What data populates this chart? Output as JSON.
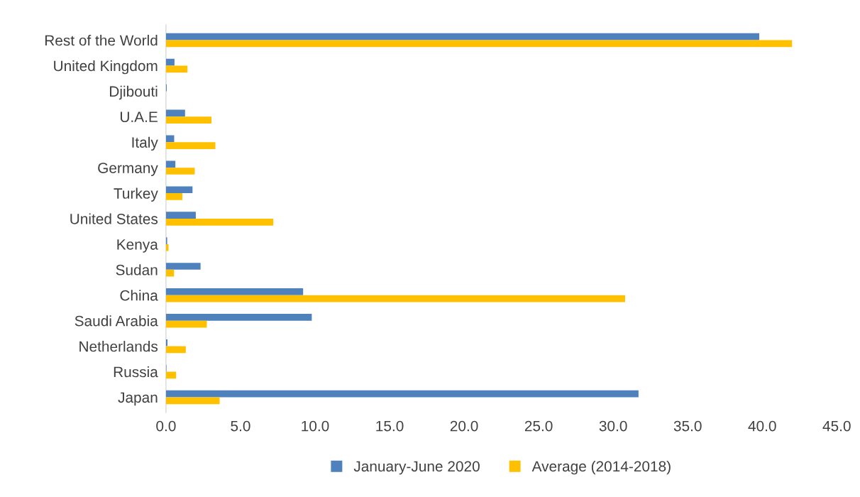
{
  "chart_data": {
    "type": "bar",
    "orientation": "horizontal",
    "categories": [
      "Rest of the World",
      "United Kingdom",
      "Djibouti",
      "U.A.E",
      "Italy",
      "Germany",
      "Turkey",
      "United States",
      "Kenya",
      "Sudan",
      "China",
      "Saudi Arabia",
      "Netherlands",
      "Russia",
      "Japan"
    ],
    "series": [
      {
        "name": "January-June 2020",
        "color": "#4f81bd",
        "values": [
          39.8,
          0.57,
          0.05,
          1.28,
          0.55,
          0.63,
          1.78,
          2.0,
          0.08,
          2.32,
          9.2,
          9.78,
          0.1,
          0.03,
          31.7
        ]
      },
      {
        "name": "Average (2014-2018)",
        "color": "#ffc000",
        "values": [
          42.0,
          1.44,
          0.0,
          3.05,
          3.31,
          1.93,
          1.1,
          7.2,
          0.17,
          0.54,
          30.8,
          2.74,
          1.33,
          0.68,
          3.6
        ]
      }
    ],
    "xlim": [
      0,
      45
    ],
    "xticks": [
      {
        "value": 0,
        "label": "0.0"
      },
      {
        "value": 5,
        "label": "5.0"
      },
      {
        "value": 10,
        "label": "10.0"
      },
      {
        "value": 15,
        "label": "15.0"
      },
      {
        "value": 20,
        "label": "20.0"
      },
      {
        "value": 25,
        "label": "25.0"
      },
      {
        "value": 30,
        "label": "30.0"
      },
      {
        "value": 35,
        "label": "35.0"
      },
      {
        "value": 40,
        "label": "40.0"
      },
      {
        "value": 45,
        "label": "45.0"
      }
    ],
    "grid": false,
    "legend": "bottom"
  }
}
